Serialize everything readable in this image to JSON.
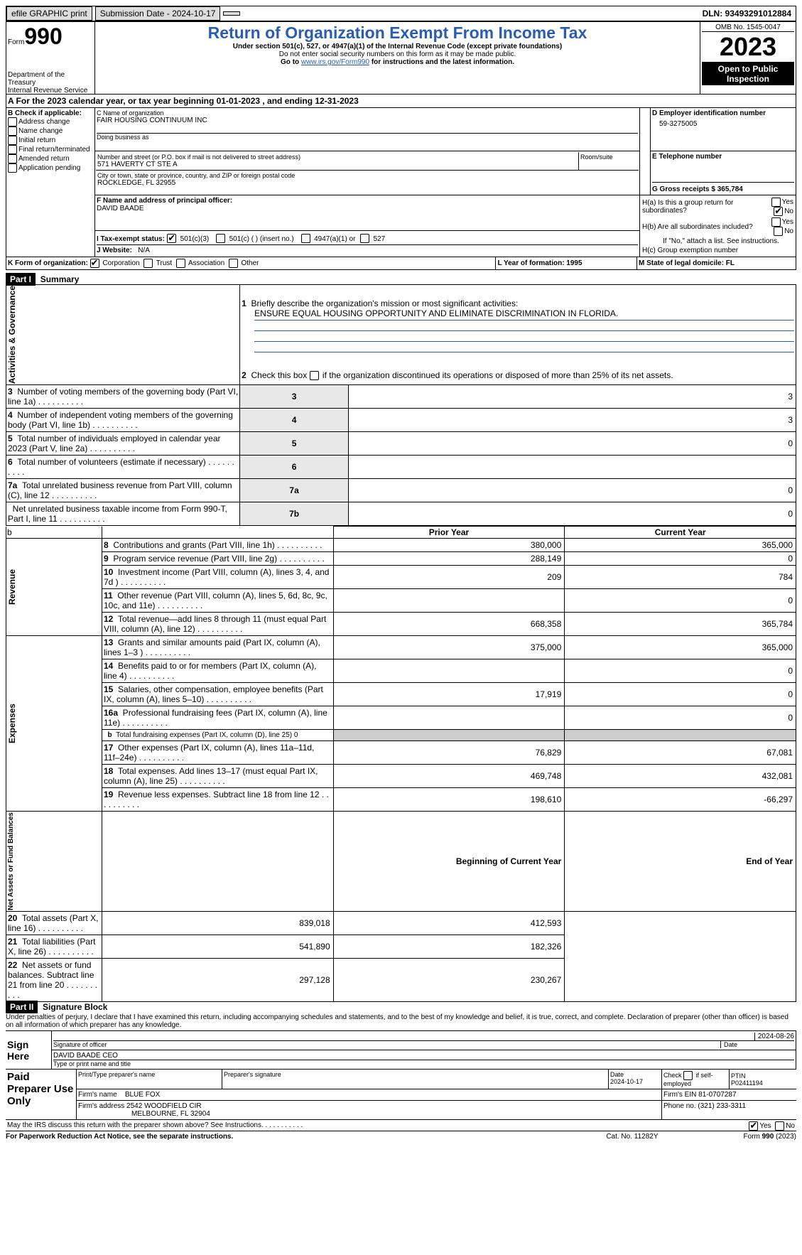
{
  "topbar": {
    "efile": "efile GRAPHIC print",
    "subdate_lbl": "Submission Date - 2024-10-17",
    "dln_lbl": "DLN: 93493291012884"
  },
  "hdr": {
    "form": "Form",
    "num": "990",
    "dept": "Department of the Treasury",
    "irs": "Internal Revenue Service",
    "title": "Return of Organization Exempt From Income Tax",
    "sub1": "Under section 501(c), 527, or 4947(a)(1) of the Internal Revenue Code (except private foundations)",
    "sub2": "Do not enter social security numbers on this form as it may be made public.",
    "sub3": "Go to",
    "sub3_link": "www.irs.gov/Form990",
    "sub3_b": "for instructions and the latest information.",
    "omb": "OMB No. 1545-0047",
    "year": "2023",
    "open": "Open to Public Inspection"
  },
  "A": {
    "line": "A  For the 2023 calendar year, or tax year beginning 01-01-2023    , and ending 12-31-2023"
  },
  "B": {
    "title": "B Check if applicable:",
    "items": [
      "Address change",
      "Name change",
      "Initial return",
      "Final return/terminated",
      "Amended return",
      "Application pending"
    ]
  },
  "C": {
    "name_lbl": "C Name of organization",
    "name": "FAIR HOUSING CONTINUUM INC",
    "dba_lbl": "Doing business as",
    "dba": "",
    "addr_lbl": "Number and street (or P.O. box if mail is not delivered to street address)",
    "room_lbl": "Room/suite",
    "addr": "571 HAVERTY CT STE A",
    "city_lbl": "City or town, state or province, country, and ZIP or foreign postal code",
    "city": "ROCKLEDGE, FL  32955"
  },
  "D": {
    "lbl": "D Employer identification number",
    "val": "59-3275005"
  },
  "E": {
    "lbl": "E Telephone number",
    "val": ""
  },
  "G": {
    "lbl": "G Gross receipts $ 365,784"
  },
  "F": {
    "lbl": "F  Name and address of principal officer:",
    "val": "DAVID BAADE"
  },
  "H": {
    "a": "H(a)  Is this a group return for subordinates?",
    "b": "H(b)  Are all subordinates included?",
    "bnote": "If \"No,\" attach a list. See instructions.",
    "c": "H(c)  Group exemption number",
    "yes": "Yes",
    "no": "No"
  },
  "I": {
    "lbl": "I   Tax-exempt status:",
    "o1": "501(c)(3)",
    "o2": "501(c) (  ) (insert no.)",
    "o3": "4947(a)(1) or",
    "o4": "527"
  },
  "J": {
    "lbl": "J   Website:",
    "val": "N/A"
  },
  "K": {
    "lbl": "K Form of organization:",
    "o1": "Corporation",
    "o2": "Trust",
    "o3": "Association",
    "o4": "Other"
  },
  "L": {
    "lbl": "L Year of formation: 1995"
  },
  "M": {
    "lbl": "M State of legal domicile: FL"
  },
  "p1": {
    "title": "Part I",
    "name": "Summary",
    "l1": "Briefly describe the organization's mission or most significant activities:",
    "l1v": "ENSURE EQUAL HOUSING OPPORTUNITY AND ELIMINATE DISCRIMINATION IN FLORIDA.",
    "l2": "Check this box",
    "l2b": "if the organization discontinued its operations or disposed of more than 25% of its net assets.",
    "rows": [
      {
        "n": "3",
        "t": "Number of voting members of the governing body (Part VI, line 1a)",
        "rn": "3",
        "v": "3"
      },
      {
        "n": "4",
        "t": "Number of independent voting members of the governing body (Part VI, line 1b)",
        "rn": "4",
        "v": "3"
      },
      {
        "n": "5",
        "t": "Total number of individuals employed in calendar year 2023 (Part V, line 2a)",
        "rn": "5",
        "v": "0"
      },
      {
        "n": "6",
        "t": "Total number of volunteers (estimate if necessary)",
        "rn": "6",
        "v": ""
      },
      {
        "n": "7a",
        "t": "Total unrelated business revenue from Part VIII, column (C), line 12",
        "rn": "7a",
        "v": "0"
      },
      {
        "n": "",
        "t": "Net unrelated business taxable income from Form 990-T, Part I, line 11",
        "rn": "7b",
        "v": "0"
      }
    ],
    "sideA": "Activities & Governance",
    "sideR": "Revenue",
    "sideE": "Expenses",
    "sideN": "Net Assets or Fund Balances",
    "col_prior": "Prior Year",
    "col_cur": "Current Year",
    "rev": [
      {
        "n": "8",
        "t": "Contributions and grants (Part VIII, line 1h)",
        "p": "380,000",
        "c": "365,000"
      },
      {
        "n": "9",
        "t": "Program service revenue (Part VIII, line 2g)",
        "p": "288,149",
        "c": "0"
      },
      {
        "n": "10",
        "t": "Investment income (Part VIII, column (A), lines 3, 4, and 7d )",
        "p": "209",
        "c": "784"
      },
      {
        "n": "11",
        "t": "Other revenue (Part VIII, column (A), lines 5, 6d, 8c, 9c, 10c, and 11e)",
        "p": "",
        "c": "0"
      },
      {
        "n": "12",
        "t": "Total revenue—add lines 8 through 11 (must equal Part VIII, column (A), line 12)",
        "p": "668,358",
        "c": "365,784"
      }
    ],
    "exp": [
      {
        "n": "13",
        "t": "Grants and similar amounts paid (Part IX, column (A), lines 1–3 )",
        "p": "375,000",
        "c": "365,000"
      },
      {
        "n": "14",
        "t": "Benefits paid to or for members (Part IX, column (A), line 4)",
        "p": "",
        "c": "0"
      },
      {
        "n": "15",
        "t": "Salaries, other compensation, employee benefits (Part IX, column (A), lines 5–10)",
        "p": "17,919",
        "c": "0"
      },
      {
        "n": "16a",
        "t": "Professional fundraising fees (Part IX, column (A), line 11e)",
        "p": "",
        "c": "0"
      },
      {
        "n": "b",
        "t": "Total fundraising expenses (Part IX, column (D), line 25) 0",
        "shade": true
      },
      {
        "n": "17",
        "t": "Other expenses (Part IX, column (A), lines 11a–11d, 11f–24e)",
        "p": "76,829",
        "c": "67,081"
      },
      {
        "n": "18",
        "t": "Total expenses. Add lines 13–17 (must equal Part IX, column (A), line 25)",
        "p": "469,748",
        "c": "432,081"
      },
      {
        "n": "19",
        "t": "Revenue less expenses. Subtract line 18 from line 12",
        "p": "198,610",
        "c": "-66,297"
      }
    ],
    "col_bcy": "Beginning of Current Year",
    "col_eoy": "End of Year",
    "net": [
      {
        "n": "20",
        "t": "Total assets (Part X, line 16)",
        "p": "839,018",
        "c": "412,593"
      },
      {
        "n": "21",
        "t": "Total liabilities (Part X, line 26)",
        "p": "541,890",
        "c": "182,326"
      },
      {
        "n": "22",
        "t": "Net assets or fund balances. Subtract line 21 from line 20",
        "p": "297,128",
        "c": "230,267"
      }
    ]
  },
  "p2": {
    "title": "Part II",
    "name": "Signature Block",
    "decl": "Under penalties of perjury, I declare that I have examined this return, including accompanying schedules and statements, and to the best of my knowledge and belief, it is true, correct, and complete. Declaration of preparer (other than officer) is based on all information of which preparer has any knowledge.",
    "sign_here": "Sign Here",
    "sig_lbl": "Signature of officer",
    "sig_name": "DAVID BAADE CEO",
    "sig_type": "Type or print name and title",
    "date_lbl": "Date",
    "date_val": "2024-08-26",
    "paid": "Paid Preparer Use Only",
    "pp_name_lbl": "Print/Type preparer's name",
    "pp_sig_lbl": "Preparer's signature",
    "pp_date_lbl": "Date",
    "pp_date": "2024-10-17",
    "pp_check": "Check",
    "pp_self": "if self-employed",
    "ptin_lbl": "PTIN",
    "ptin": "P02411194",
    "firm_name_lbl": "Firm's name",
    "firm_name": "BLUE FOX",
    "firm_ein_lbl": "Firm's EIN",
    "firm_ein": "81-0707287",
    "firm_addr_lbl": "Firm's address",
    "firm_addr1": "2542 WOODFIELD CIR",
    "firm_addr2": "MELBOURNE, FL  32904",
    "phone_lbl": "Phone no.",
    "phone": "(321) 233-3311",
    "discuss": "May the IRS discuss this return with the preparer shown above? See Instructions.",
    "yes": "Yes",
    "no": "No"
  },
  "foot": {
    "pra": "For Paperwork Reduction Act Notice, see the separate instructions.",
    "cat": "Cat. No. 11282Y",
    "form": "Form 990 (2023)"
  }
}
